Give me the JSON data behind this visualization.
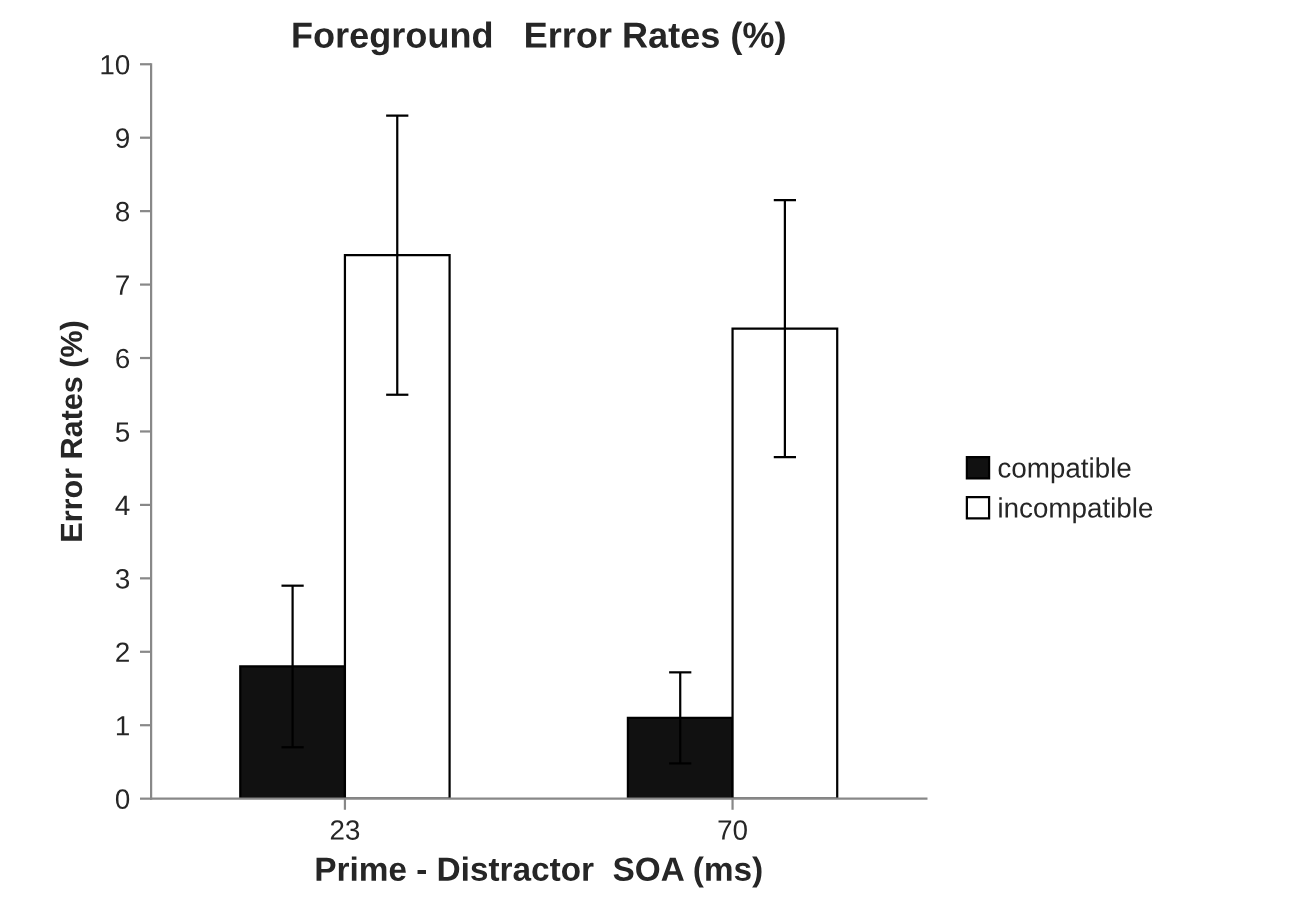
{
  "chart_data": {
    "type": "bar",
    "title": "Foreground   Error Rates (%)",
    "xlabel": "Prime - Distractor  SOA (ms)",
    "ylabel": "Error Rates (%)",
    "categories": [
      "23",
      "70"
    ],
    "series": [
      {
        "name": "compatible",
        "color": "#111111",
        "values": [
          1.8,
          1.1
        ],
        "errors": [
          1.1,
          0.62
        ]
      },
      {
        "name": "incompatible",
        "color": "#ffffff",
        "values": [
          7.4,
          6.4
        ],
        "errors": [
          1.9,
          1.75
        ]
      }
    ],
    "ylim": [
      0,
      10
    ],
    "yticks": [
      0,
      1,
      2,
      3,
      4,
      5,
      6,
      7,
      8,
      9,
      10
    ],
    "grid": false,
    "legend": "right"
  }
}
